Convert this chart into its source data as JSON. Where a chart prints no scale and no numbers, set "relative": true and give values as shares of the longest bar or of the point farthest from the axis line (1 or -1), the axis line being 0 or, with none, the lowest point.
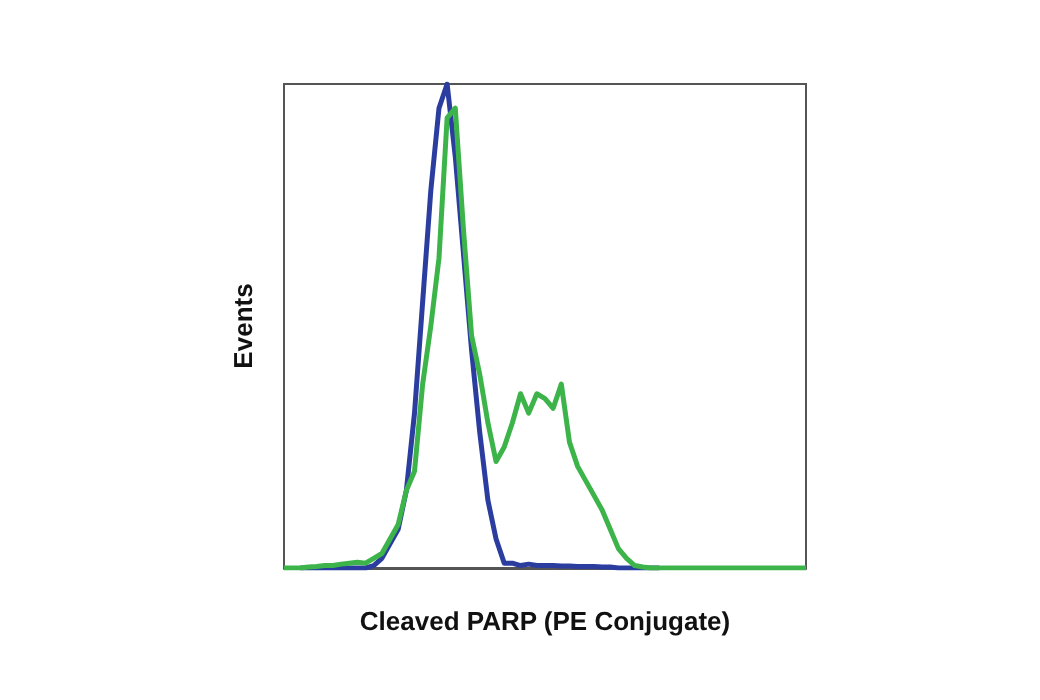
{
  "chart_data": {
    "type": "line",
    "relative": true,
    "xlabel": "Cleaved PARP (PE Conjugate)",
    "ylabel": "Events",
    "marker": "none",
    "line_style": "solid",
    "grid": false,
    "categories": [
      null,
      null,
      null,
      null,
      null,
      null,
      null,
      null,
      null,
      null,
      null,
      null,
      null,
      null,
      null,
      null,
      null,
      null,
      null,
      null,
      null,
      null,
      null,
      null,
      null,
      null,
      null,
      null,
      null,
      null,
      null,
      null,
      null,
      null,
      null,
      null,
      null,
      null,
      null,
      null,
      null,
      null,
      null,
      null,
      null,
      null,
      null,
      null,
      null,
      null,
      null,
      null,
      null,
      null,
      null,
      null,
      null,
      null,
      null,
      null,
      null,
      null,
      null,
      null,
      null
    ],
    "series": [
      {
        "color": "#2b3ea0",
        "values": [
          null,
          null,
          0,
          0,
          0,
          0,
          0,
          0,
          0,
          0,
          0,
          0.005,
          0.02,
          0.05,
          0.08,
          0.16,
          0.32,
          0.55,
          0.78,
          0.95,
          1,
          0.85,
          0.65,
          0.45,
          0.28,
          0.14,
          0.06,
          0.01,
          0.01,
          0.005,
          0.008,
          0.005,
          0.005,
          0.005,
          0.004,
          0.004,
          0.003,
          0.003,
          0.003,
          0.002,
          0.002,
          0,
          0,
          0,
          0,
          0,
          0,
          null,
          null,
          null,
          null,
          null,
          null,
          null,
          null,
          null,
          null,
          null,
          null,
          null,
          null,
          null,
          null,
          null,
          null
        ]
      },
      {
        "color": "#3cb44a",
        "values": [
          0,
          0,
          0,
          0.002,
          0.003,
          0.005,
          0.005,
          0.008,
          0.01,
          0.012,
          0.01,
          0.02,
          0.03,
          0.06,
          0.09,
          0.16,
          0.2,
          0.38,
          0.5,
          0.64,
          0.93,
          0.95,
          0.7,
          0.48,
          0.4,
          0.3,
          0.22,
          0.25,
          0.3,
          0.36,
          0.32,
          0.36,
          0.35,
          0.33,
          0.38,
          0.26,
          0.21,
          0.18,
          0.15,
          0.12,
          0.08,
          0.04,
          0.02,
          0.005,
          0.002,
          0,
          0,
          0,
          0,
          0,
          0,
          0,
          0,
          0,
          0,
          0,
          0,
          0,
          0,
          0,
          0,
          0,
          0,
          0,
          0
        ]
      }
    ]
  }
}
